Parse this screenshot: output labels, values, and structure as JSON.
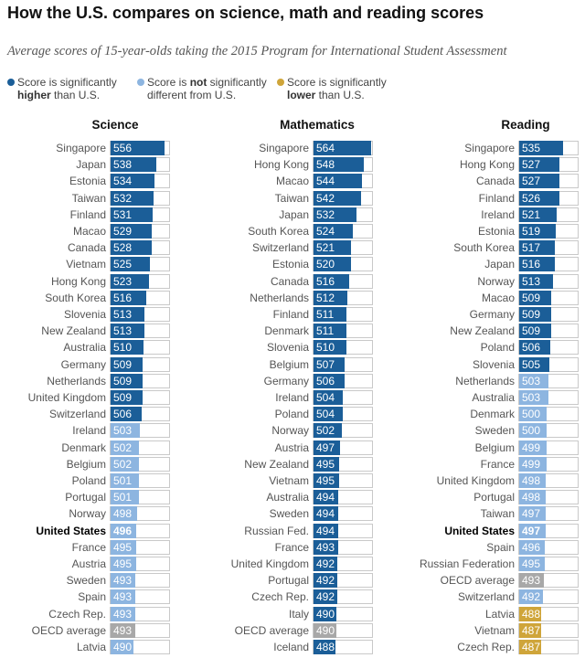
{
  "title": "How the U.S. compares on science, math and reading scores",
  "subtitle": "Average scores of 15-year-olds taking the 2015 Program for International Student Assessment",
  "colors": {
    "higher": "#1b5e98",
    "not_different": "#8db5e0",
    "lower": "#cfa53a",
    "oecd": "#a8a8a8"
  },
  "legend": [
    {
      "pre": "Score is significantly",
      "bold": "higher",
      "post": " than U.S.",
      "bold_first_line": false,
      "color": "#1b5e98"
    },
    {
      "pre": "Score is ",
      "bold": "not",
      "post": " significantly different from U.S.",
      "bold_first_line": true,
      "color": "#8db5e0"
    },
    {
      "pre": "Score is significantly",
      "bold": "lower",
      "post": " than U.S.",
      "bold_first_line": false,
      "color": "#cfa53a"
    }
  ],
  "chart_data": [
    {
      "type": "bar",
      "title": "Science",
      "rows": [
        {
          "name": "Singapore",
          "value": 556,
          "status": "higher"
        },
        {
          "name": "Japan",
          "value": 538,
          "status": "higher"
        },
        {
          "name": "Estonia",
          "value": 534,
          "status": "higher"
        },
        {
          "name": "Taiwan",
          "value": 532,
          "status": "higher"
        },
        {
          "name": "Finland",
          "value": 531,
          "status": "higher"
        },
        {
          "name": "Macao",
          "value": 529,
          "status": "higher"
        },
        {
          "name": "Canada",
          "value": 528,
          "status": "higher"
        },
        {
          "name": "Vietnam",
          "value": 525,
          "status": "higher"
        },
        {
          "name": "Hong Kong",
          "value": 523,
          "status": "higher"
        },
        {
          "name": "South Korea",
          "value": 516,
          "status": "higher"
        },
        {
          "name": "Slovenia",
          "value": 513,
          "status": "higher"
        },
        {
          "name": "New Zealand",
          "value": 513,
          "status": "higher"
        },
        {
          "name": "Australia",
          "value": 510,
          "status": "higher"
        },
        {
          "name": "Germany",
          "value": 509,
          "status": "higher"
        },
        {
          "name": "Netherlands",
          "value": 509,
          "status": "higher"
        },
        {
          "name": "United Kingdom",
          "value": 509,
          "status": "higher"
        },
        {
          "name": "Switzerland",
          "value": 506,
          "status": "higher"
        },
        {
          "name": "Ireland",
          "value": 503,
          "status": "not_different"
        },
        {
          "name": "Denmark",
          "value": 502,
          "status": "not_different"
        },
        {
          "name": "Belgium",
          "value": 502,
          "status": "not_different"
        },
        {
          "name": "Poland",
          "value": 501,
          "status": "not_different"
        },
        {
          "name": "Portugal",
          "value": 501,
          "status": "not_different"
        },
        {
          "name": "Norway",
          "value": 498,
          "status": "not_different"
        },
        {
          "name": "United States",
          "value": 496,
          "status": "not_different",
          "us": true
        },
        {
          "name": "France",
          "value": 495,
          "status": "not_different"
        },
        {
          "name": "Austria",
          "value": 495,
          "status": "not_different"
        },
        {
          "name": "Sweden",
          "value": 493,
          "status": "not_different"
        },
        {
          "name": "Spain",
          "value": 493,
          "status": "not_different"
        },
        {
          "name": "Czech Rep.",
          "value": 493,
          "status": "not_different"
        },
        {
          "name": "OECD average",
          "value": 493,
          "status": "oecd"
        },
        {
          "name": "Latvia",
          "value": 490,
          "status": "not_different"
        }
      ]
    },
    {
      "type": "bar",
      "title": "Mathematics",
      "rows": [
        {
          "name": "Singapore",
          "value": 564,
          "status": "higher"
        },
        {
          "name": "Hong Kong",
          "value": 548,
          "status": "higher"
        },
        {
          "name": "Macao",
          "value": 544,
          "status": "higher"
        },
        {
          "name": "Taiwan",
          "value": 542,
          "status": "higher"
        },
        {
          "name": "Japan",
          "value": 532,
          "status": "higher"
        },
        {
          "name": "South Korea",
          "value": 524,
          "status": "higher"
        },
        {
          "name": "Switzerland",
          "value": 521,
          "status": "higher"
        },
        {
          "name": "Estonia",
          "value": 520,
          "status": "higher"
        },
        {
          "name": "Canada",
          "value": 516,
          "status": "higher"
        },
        {
          "name": "Netherlands",
          "value": 512,
          "status": "higher"
        },
        {
          "name": "Finland",
          "value": 511,
          "status": "higher"
        },
        {
          "name": "Denmark",
          "value": 511,
          "status": "higher"
        },
        {
          "name": "Slovenia",
          "value": 510,
          "status": "higher"
        },
        {
          "name": "Belgium",
          "value": 507,
          "status": "higher"
        },
        {
          "name": "Germany",
          "value": 506,
          "status": "higher"
        },
        {
          "name": "Ireland",
          "value": 504,
          "status": "higher"
        },
        {
          "name": "Poland",
          "value": 504,
          "status": "higher"
        },
        {
          "name": "Norway",
          "value": 502,
          "status": "higher"
        },
        {
          "name": "Austria",
          "value": 497,
          "status": "higher"
        },
        {
          "name": "New Zealand",
          "value": 495,
          "status": "higher"
        },
        {
          "name": "Vietnam",
          "value": 495,
          "status": "higher"
        },
        {
          "name": "Australia",
          "value": 494,
          "status": "higher"
        },
        {
          "name": "Sweden",
          "value": 494,
          "status": "higher"
        },
        {
          "name": "Russian Fed.",
          "value": 494,
          "status": "higher"
        },
        {
          "name": "France",
          "value": 493,
          "status": "higher"
        },
        {
          "name": "United Kingdom",
          "value": 492,
          "status": "higher"
        },
        {
          "name": "Portugal",
          "value": 492,
          "status": "higher"
        },
        {
          "name": "Czech Rep.",
          "value": 492,
          "status": "higher"
        },
        {
          "name": "Italy",
          "value": 490,
          "status": "higher"
        },
        {
          "name": "OECD average",
          "value": 490,
          "status": "oecd"
        },
        {
          "name": "Iceland",
          "value": 488,
          "status": "higher"
        }
      ]
    },
    {
      "type": "bar",
      "title": "Reading",
      "rows": [
        {
          "name": "Singapore",
          "value": 535,
          "status": "higher"
        },
        {
          "name": "Hong Kong",
          "value": 527,
          "status": "higher"
        },
        {
          "name": "Canada",
          "value": 527,
          "status": "higher"
        },
        {
          "name": "Finland",
          "value": 526,
          "status": "higher"
        },
        {
          "name": "Ireland",
          "value": 521,
          "status": "higher"
        },
        {
          "name": "Estonia",
          "value": 519,
          "status": "higher"
        },
        {
          "name": "South Korea",
          "value": 517,
          "status": "higher"
        },
        {
          "name": "Japan",
          "value": 516,
          "status": "higher"
        },
        {
          "name": "Norway",
          "value": 513,
          "status": "higher"
        },
        {
          "name": "Macao",
          "value": 509,
          "status": "higher"
        },
        {
          "name": "Germany",
          "value": 509,
          "status": "higher"
        },
        {
          "name": "New Zealand",
          "value": 509,
          "status": "higher"
        },
        {
          "name": "Poland",
          "value": 506,
          "status": "higher"
        },
        {
          "name": "Slovenia",
          "value": 505,
          "status": "higher"
        },
        {
          "name": "Netherlands",
          "value": 503,
          "status": "not_different"
        },
        {
          "name": "Australia",
          "value": 503,
          "status": "not_different"
        },
        {
          "name": "Denmark",
          "value": 500,
          "status": "not_different"
        },
        {
          "name": "Sweden",
          "value": 500,
          "status": "not_different"
        },
        {
          "name": "Belgium",
          "value": 499,
          "status": "not_different"
        },
        {
          "name": "France",
          "value": 499,
          "status": "not_different"
        },
        {
          "name": "United Kingdom",
          "value": 498,
          "status": "not_different"
        },
        {
          "name": "Portugal",
          "value": 498,
          "status": "not_different"
        },
        {
          "name": "Taiwan",
          "value": 497,
          "status": "not_different"
        },
        {
          "name": "United States",
          "value": 497,
          "status": "not_different",
          "us": true
        },
        {
          "name": "Spain",
          "value": 496,
          "status": "not_different"
        },
        {
          "name": "Russian Federation",
          "value": 495,
          "status": "not_different"
        },
        {
          "name": "OECD average",
          "value": 493,
          "status": "oecd"
        },
        {
          "name": "Switzerland",
          "value": 492,
          "status": "not_different"
        },
        {
          "name": "Latvia",
          "value": 488,
          "status": "lower"
        },
        {
          "name": "Vietnam",
          "value": 487,
          "status": "lower"
        },
        {
          "name": "Czech Rep.",
          "value": 487,
          "status": "lower"
        }
      ]
    }
  ]
}
